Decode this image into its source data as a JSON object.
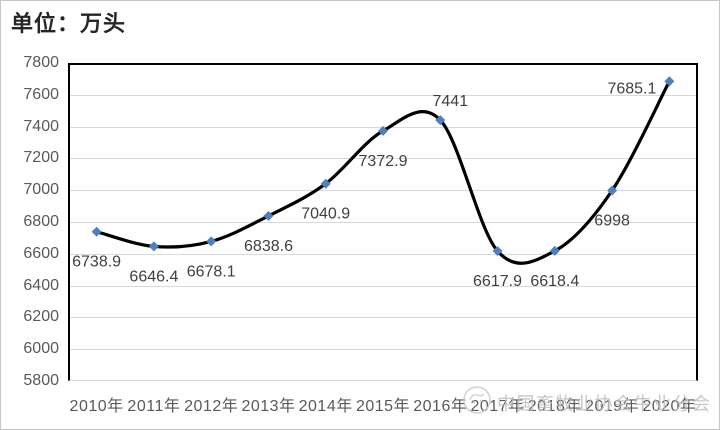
{
  "unit_label": "单位：万头",
  "watermark": {
    "text": "中国畜牧业协会牛业分会",
    "logo": "association-logo"
  },
  "chart_data": {
    "type": "line",
    "smooth": true,
    "title": "",
    "xlabel": "",
    "ylabel": "单位：万头",
    "categories": [
      "2010年",
      "2011年",
      "2012年",
      "2013年",
      "2014年",
      "2015年",
      "2016年",
      "2017年",
      "2018年",
      "2019年",
      "2020年"
    ],
    "values": [
      6738.9,
      6646.4,
      6678.1,
      6838.6,
      7040.9,
      7372.9,
      7441,
      6617.9,
      6618.4,
      6998,
      7685.1
    ],
    "point_labels": [
      "6738.9",
      "6646.4",
      "6678.1",
      "6838.6",
      "7040.9",
      "7372.9",
      "7441",
      "6617.9",
      "6618.4",
      "6998",
      "7685.1"
    ],
    "ylim": [
      5800,
      7800
    ],
    "ytick_interval": 200,
    "yticks": [
      7800,
      7600,
      7400,
      7200,
      7000,
      6800,
      6600,
      6400,
      6200,
      6000,
      5800
    ],
    "grid": "horizontal",
    "legend": "none",
    "line_color": "#000000",
    "marker_color": "#4d80bd",
    "marker_shape": "diamond",
    "gridline_color": "#d9d9d9",
    "axis_text_color": "#595959",
    "label_text_color": "#404040"
  }
}
